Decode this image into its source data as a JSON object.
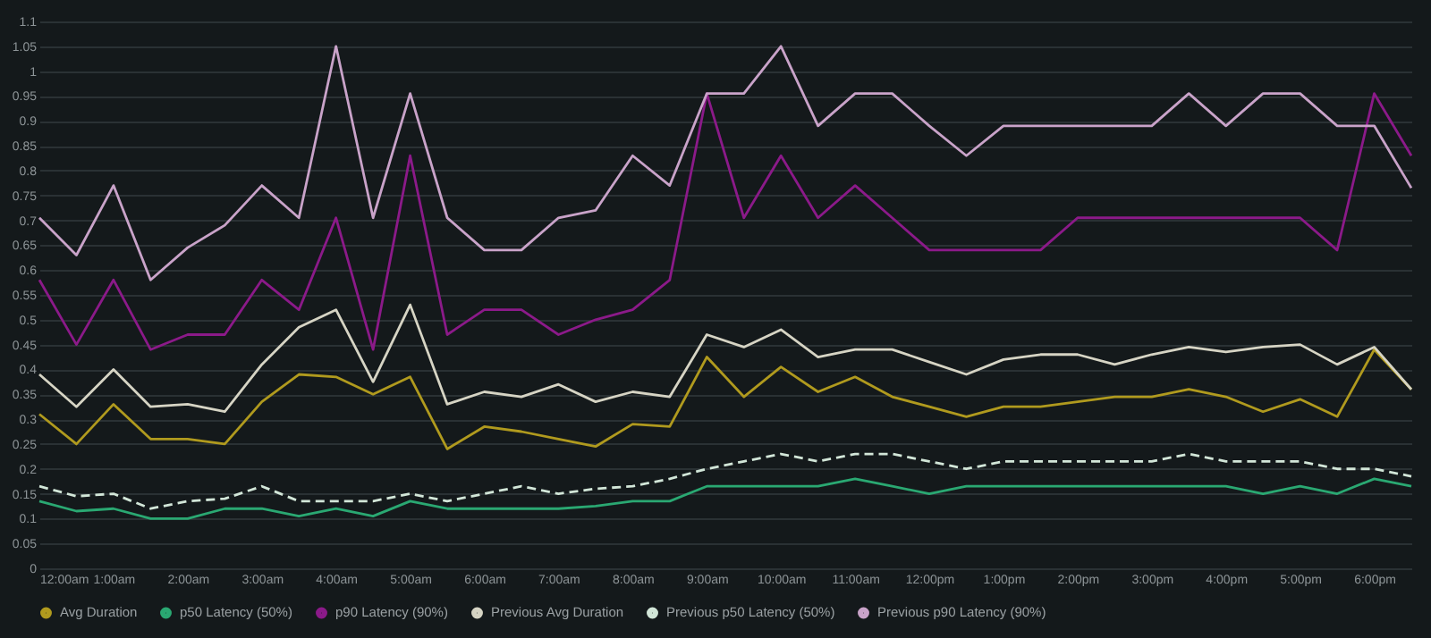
{
  "chart_data": {
    "type": "line",
    "x": [
      0,
      0.5,
      1,
      1.5,
      2,
      2.5,
      3,
      3.5,
      4,
      4.5,
      5,
      5.5,
      6,
      6.5,
      7,
      7.5,
      8,
      8.5,
      9,
      9.5,
      10,
      10.5,
      11,
      11.5,
      12,
      12.5,
      13,
      13.5,
      14,
      14.5,
      15,
      15.5,
      16,
      16.5,
      17,
      17.5,
      18,
      18.5
    ],
    "series": [
      {
        "name": "Avg Duration",
        "color": "#b09a1e",
        "values": [
          0.31,
          0.25,
          0.33,
          0.26,
          0.26,
          0.25,
          0.335,
          0.39,
          0.385,
          0.35,
          0.385,
          0.24,
          0.285,
          0.275,
          0.26,
          0.245,
          0.29,
          0.285,
          0.425,
          0.345,
          0.405,
          0.355,
          0.385,
          0.345,
          0.325,
          0.305,
          0.325,
          0.325,
          0.335,
          0.345,
          0.345,
          0.36,
          0.345,
          0.315,
          0.34,
          0.305,
          0.44,
          0.36
        ]
      },
      {
        "name": "p50 Latency (50%)",
        "color": "#2aa872",
        "values": [
          0.135,
          0.115,
          0.12,
          0.1,
          0.1,
          0.12,
          0.12,
          0.105,
          0.12,
          0.105,
          0.135,
          0.12,
          0.12,
          0.12,
          0.12,
          0.125,
          0.135,
          0.135,
          0.165,
          0.165,
          0.165,
          0.165,
          0.18,
          0.165,
          0.15,
          0.165,
          0.165,
          0.165,
          0.165,
          0.165,
          0.165,
          0.165,
          0.165,
          0.15,
          0.165,
          0.15,
          0.18,
          0.165
        ]
      },
      {
        "name": "p90 Latency (90%)",
        "color": "#8b1a89",
        "values": [
          0.58,
          0.45,
          0.58,
          0.44,
          0.47,
          0.47,
          0.58,
          0.52,
          0.705,
          0.44,
          0.83,
          0.47,
          0.52,
          0.52,
          0.47,
          0.5,
          0.52,
          0.58,
          0.955,
          0.705,
          0.83,
          0.705,
          0.77,
          0.705,
          0.64,
          0.64,
          0.64,
          0.64,
          0.705,
          0.705,
          0.705,
          0.705,
          0.705,
          0.705,
          0.705,
          0.64,
          0.955,
          0.83
        ]
      },
      {
        "name": "Previous Avg Duration",
        "color": "#d6d4c4",
        "values": [
          0.39,
          0.325,
          0.4,
          0.325,
          0.33,
          0.315,
          0.41,
          0.485,
          0.52,
          0.375,
          0.53,
          0.33,
          0.355,
          0.345,
          0.37,
          0.335,
          0.355,
          0.345,
          0.47,
          0.445,
          0.48,
          0.425,
          0.44,
          0.44,
          0.415,
          0.39,
          0.42,
          0.43,
          0.43,
          0.41,
          0.43,
          0.445,
          0.435,
          0.445,
          0.45,
          0.41,
          0.445,
          0.36
        ]
      },
      {
        "name": "Previous p50 Latency (50%)",
        "color": "#d2e6d8",
        "line_style": "dashed",
        "values": [
          0.165,
          0.145,
          0.15,
          0.12,
          0.135,
          0.14,
          0.165,
          0.135,
          0.135,
          0.135,
          0.15,
          0.135,
          0.15,
          0.165,
          0.15,
          0.16,
          0.165,
          0.18,
          0.2,
          0.215,
          0.23,
          0.215,
          0.23,
          0.23,
          0.215,
          0.2,
          0.215,
          0.215,
          0.215,
          0.215,
          0.215,
          0.23,
          0.215,
          0.215,
          0.215,
          0.2,
          0.2,
          0.185
        ]
      },
      {
        "name": "Previous p90 Latency (90%)",
        "color": "#c9a3c9",
        "values": [
          0.705,
          0.63,
          0.77,
          0.58,
          0.645,
          0.69,
          0.77,
          0.705,
          1.05,
          0.705,
          0.955,
          0.705,
          0.64,
          0.64,
          0.705,
          0.72,
          0.83,
          0.77,
          0.955,
          0.955,
          1.05,
          0.89,
          0.955,
          0.955,
          0.89,
          0.83,
          0.89,
          0.89,
          0.89,
          0.89,
          0.89,
          0.955,
          0.89,
          0.955,
          0.955,
          0.89,
          0.89,
          0.765
        ]
      }
    ],
    "xlim": [
      0,
      18.5
    ],
    "xticks": [
      {
        "value": 0,
        "label": "12:00am"
      },
      {
        "value": 1,
        "label": "1:00am"
      },
      {
        "value": 2,
        "label": "2:00am"
      },
      {
        "value": 3,
        "label": "3:00am"
      },
      {
        "value": 4,
        "label": "4:00am"
      },
      {
        "value": 5,
        "label": "5:00am"
      },
      {
        "value": 6,
        "label": "6:00am"
      },
      {
        "value": 7,
        "label": "7:00am"
      },
      {
        "value": 8,
        "label": "8:00am"
      },
      {
        "value": 9,
        "label": "9:00am"
      },
      {
        "value": 10,
        "label": "10:00am"
      },
      {
        "value": 11,
        "label": "11:00am"
      },
      {
        "value": 12,
        "label": "12:00pm"
      },
      {
        "value": 13,
        "label": "1:00pm"
      },
      {
        "value": 14,
        "label": "2:00pm"
      },
      {
        "value": 15,
        "label": "3:00pm"
      },
      {
        "value": 16,
        "label": "4:00pm"
      },
      {
        "value": 17,
        "label": "5:00pm"
      },
      {
        "value": 18,
        "label": "6:00pm"
      }
    ],
    "ylim": [
      0,
      1.1
    ],
    "yticks": [
      0,
      0.05,
      0.1,
      0.15,
      0.2,
      0.25,
      0.3,
      0.35,
      0.4,
      0.45,
      0.5,
      0.55,
      0.6,
      0.65,
      0.7,
      0.75,
      0.8,
      0.85,
      0.9,
      0.95,
      1,
      1.05,
      1.1
    ],
    "grid": "y",
    "legend": "bottom left",
    "marker": "none",
    "line_style": "solid"
  }
}
